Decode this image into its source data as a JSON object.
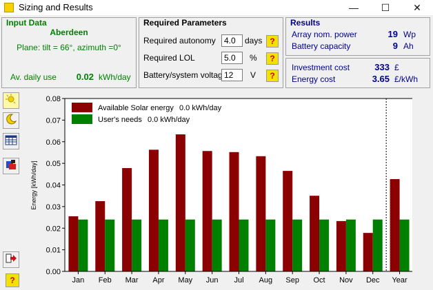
{
  "window": {
    "title": "Sizing and Results",
    "minimize": "—",
    "maximize": "☐",
    "close": "✕"
  },
  "input_data": {
    "heading": "Input Data",
    "site": "Aberdeen",
    "plane": "Plane: tilt = 66°, azimuth =0°",
    "daily_use_label": "Av. daily use",
    "daily_use_value": "0.02",
    "daily_use_unit": "kWh/day"
  },
  "required_parameters": {
    "heading": "Required Parameters",
    "rows": [
      {
        "label": "Required autonomy",
        "value": "4.0",
        "unit": "days"
      },
      {
        "label": "Required LOL",
        "value": "5.0",
        "unit": "%"
      },
      {
        "label": "Battery/system voltage",
        "value": "12",
        "unit": "V"
      }
    ],
    "help": "?"
  },
  "results": {
    "heading": "Results",
    "rows": [
      {
        "label": "Array nom. power",
        "value": "19",
        "unit": "Wp"
      },
      {
        "label": "Battery capacity",
        "value": "9",
        "unit": "Ah"
      },
      {
        "label": "Investment cost",
        "value": "333",
        "unit": "£"
      },
      {
        "label": "Energy cost",
        "value": "3.65",
        "unit": "£/kWh"
      }
    ]
  },
  "sidebar": {
    "tools": [
      "sun-icon",
      "moon-icon",
      "calendar-icon",
      "chart-icon"
    ],
    "bottom": {
      "exit": "exit-icon",
      "help": "?"
    }
  },
  "colors": {
    "solar": "#8b0000",
    "needs": "#008000",
    "green_text": "#008000",
    "blue_text": "#000090"
  },
  "chart_data": {
    "type": "bar",
    "categories": [
      "Jan",
      "Feb",
      "Mar",
      "Apr",
      "May",
      "Jun",
      "Jul",
      "Aug",
      "Sep",
      "Oct",
      "Nov",
      "Dec",
      "Year"
    ],
    "series": [
      {
        "name": "Available Solar energy",
        "legend_value": "0.0 kWh/day",
        "color": "#8b0000",
        "values": [
          0.0255,
          0.0325,
          0.0478,
          0.0563,
          0.0634,
          0.0557,
          0.0552,
          0.0533,
          0.0465,
          0.035,
          0.0233,
          0.0178,
          0.0427
        ]
      },
      {
        "name": "User's needs",
        "legend_value": "0.0 kWh/day",
        "color": "#008000",
        "values": [
          0.024,
          0.024,
          0.024,
          0.024,
          0.024,
          0.024,
          0.024,
          0.024,
          0.024,
          0.024,
          0.024,
          0.024,
          0.024
        ]
      }
    ],
    "ylabel": "Energy [kWh/day]",
    "ylim": [
      0,
      0.08
    ],
    "yticks": [
      "0.00",
      "0.01",
      "0.02",
      "0.03",
      "0.04",
      "0.05",
      "0.06",
      "0.07",
      "0.08"
    ],
    "legend_position": "top-left",
    "year_separator": "dotted"
  }
}
